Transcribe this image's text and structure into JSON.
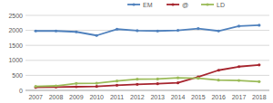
{
  "chart_data": {
    "type": "line",
    "categories": [
      "2007",
      "2008",
      "2009",
      "2010",
      "2011",
      "2012",
      "2013",
      "2014",
      "2015",
      "2016",
      "2017",
      "2018"
    ],
    "series": [
      {
        "name": "EM",
        "color": "#4f81bd",
        "values": [
          1980,
          1980,
          1950,
          1830,
          2040,
          1990,
          1980,
          2000,
          2060,
          1980,
          2140,
          2170
        ]
      },
      {
        "name": "@",
        "color": "#a6252e",
        "values": [
          100,
          110,
          120,
          130,
          170,
          200,
          220,
          250,
          450,
          670,
          790,
          850
        ]
      },
      {
        "name": "LD",
        "color": "#9bbb59",
        "values": [
          130,
          150,
          230,
          240,
          310,
          370,
          380,
          420,
          400,
          340,
          330,
          290
        ]
      }
    ],
    "ylim": [
      0,
      2500
    ],
    "yticks": [
      0,
      500,
      1000,
      1500,
      2000,
      2500
    ],
    "grid": true,
    "legend": "top",
    "marker": "circle"
  }
}
